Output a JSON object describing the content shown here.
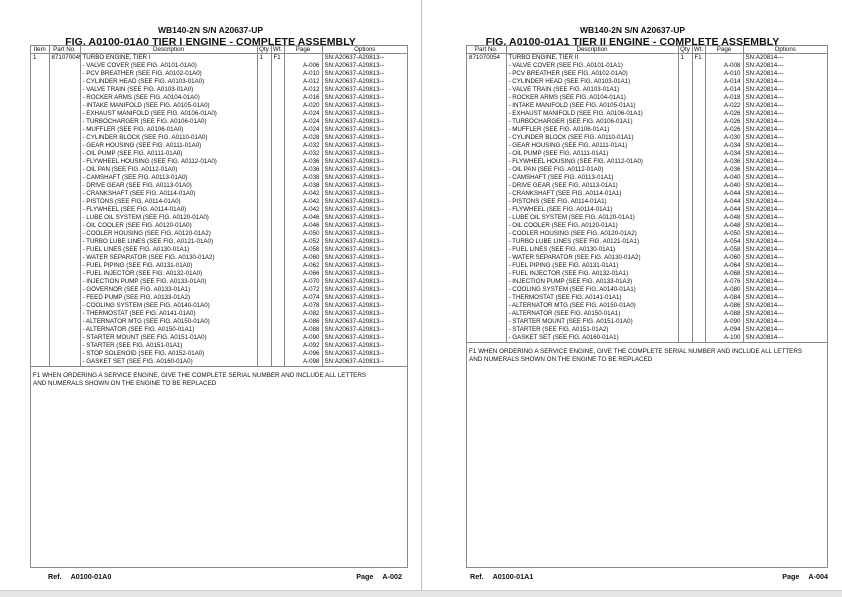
{
  "pages": [
    {
      "header": "WB140-2N S/N A20637-UP",
      "title": "FIG. A0100-01A0 TIER I ENGINE - COMPLETE ASSEMBLY",
      "columns": [
        "Item",
        "Part No.",
        "Description",
        "Qty",
        "Wt.",
        "Page",
        "Options"
      ],
      "rows": [
        {
          "item": "1",
          "part": "871070049",
          "desc": "TURBO ENGINE, TIER I",
          "qty": "1",
          "wt": "F1",
          "page": "",
          "options": "SN:A20637-A20813--"
        },
        {
          "desc": "- VALVE COVER (SEE FIG. A0101-01A0)",
          "page": "A-006",
          "options": "SN:A20637-A20813--"
        },
        {
          "desc": "- PCV BREATHER (SEE FIG. A0102-01A0)",
          "page": "A-010",
          "options": "SN:A20637-A20813--"
        },
        {
          "desc": "- CYLINDER HEAD (SEE FIG. A0103-01A0)",
          "page": "A-012",
          "options": "SN:A20637-A20813--"
        },
        {
          "desc": "- VALVE TRAIN (SEE FIG. A0103-01A0)",
          "page": "A-012",
          "options": "SN:A20637-A20813--"
        },
        {
          "desc": "- ROCKER ARMS (SEE FIG. A0104-01A0)",
          "page": "A-016",
          "options": "SN:A20637-A20813--"
        },
        {
          "desc": "- INTAKE MANIFOLD (SEE FIG. A0105-01A0)",
          "page": "A-020",
          "options": "SN:A20637-A20813--"
        },
        {
          "desc": "- EXHAUST MANIFOLD (SEE FIG. A0106-01A0)",
          "page": "A-024",
          "options": "SN:A20637-A20813--"
        },
        {
          "desc": "- TURBOCHARGER (SEE FIG. A0106-01A0)",
          "page": "A-024",
          "options": "SN:A20637-A20813--"
        },
        {
          "desc": "- MUFFLER (SEE FIG. A0106-01A0)",
          "page": "A-024",
          "options": "SN:A20637-A20813--"
        },
        {
          "desc": "- CYLINDER BLOCK (SEE FIG. A0110-01A0)",
          "page": "A-028",
          "options": "SN:A20637-A20813--"
        },
        {
          "desc": "- GEAR HOUSING (SEE FIG. A0111-01A0)",
          "page": "A-032",
          "options": "SN:A20637-A20813--"
        },
        {
          "desc": "- OIL PUMP (SEE FIG. A0111-01A0)",
          "page": "A-032",
          "options": "SN:A20637-A20813--"
        },
        {
          "desc": "- FLYWHEEL HOUSING (SEE FIG. A0112-01A0)",
          "page": "A-036",
          "options": "SN:A20637-A20813--"
        },
        {
          "desc": "- OIL PAN (SEE FIG. A0112-01A0)",
          "page": "A-036",
          "options": "SN:A20637-A20813--"
        },
        {
          "desc": "- CAMSHAFT (SEE FIG. A0113-01A0)",
          "page": "A-038",
          "options": "SN:A20637-A20813--"
        },
        {
          "desc": "- DRIVE GEAR (SEE FIG. A0113-01A0)",
          "page": "A-038",
          "options": "SN:A20637-A20813--"
        },
        {
          "desc": "- CRANKSHAFT (SEE FIG. A0114-01A0)",
          "page": "A-042",
          "options": "SN:A20637-A20813--"
        },
        {
          "desc": "- PISTONS (SEE FIG. A0114-01A0)",
          "page": "A-042",
          "options": "SN:A20637-A20813--"
        },
        {
          "desc": "- FLYWHEEL (SEE FIG. A0114-01A0)",
          "page": "A-042",
          "options": "SN:A20637-A20813--"
        },
        {
          "desc": "- LUBE OIL SYSTEM (SEE FIG. A0120-01A0)",
          "page": "A-046",
          "options": "SN:A20637-A20813--"
        },
        {
          "desc": "- OIL COOLER (SEE FIG. A0120-01A0)",
          "page": "A-046",
          "options": "SN:A20637-A20813--"
        },
        {
          "desc": "- COOLER HOUSING (SEE FIG. A0120-01A2)",
          "page": "A-050",
          "options": "SN:A20637-A20813--"
        },
        {
          "desc": "- TURBO LUBE LINES (SEE FIG. A0121-01A0)",
          "page": "A-052",
          "options": "SN:A20637-A20813--"
        },
        {
          "desc": "- FUEL LINES (SEE FIG. A0130-01A1)",
          "page": "A-058",
          "options": "SN:A20637-A20813--"
        },
        {
          "desc": "- WATER SEPARATOR (SEE FIG. A0130-01A2)",
          "page": "A-060",
          "options": "SN:A20637-A20813--"
        },
        {
          "desc": "- FUEL PIPING (SEE FIG. A0131-01A0)",
          "page": "A-062",
          "options": "SN:A20637-A20813--"
        },
        {
          "desc": "- FUEL INJECTOR (SEE FIG. A0132-01A0)",
          "page": "A-066",
          "options": "SN:A20637-A20813--"
        },
        {
          "desc": "- INJECTION PUMP (SEE FIG. A0133-01A0)",
          "page": "A-070",
          "options": "SN:A20637-A20813--"
        },
        {
          "desc": "- GOVERNOR (SEE FIG. A0133-01A1)",
          "page": "A-072",
          "options": "SN:A20637-A20813--"
        },
        {
          "desc": "- FEED PUMP (SEE FIG. A0133-01A2)",
          "page": "A-074",
          "options": "SN:A20637-A20813--"
        },
        {
          "desc": "- COOLING SYSTEM (SEE FIG. A0140-01A0)",
          "page": "A-078",
          "options": "SN:A20637-A20813--"
        },
        {
          "desc": "- THERMOSTAT (SEE FIG. A0141-01A0)",
          "page": "A-082",
          "options": "SN:A20637-A20813--"
        },
        {
          "desc": "- ALTERNATOR MTG (SEE FIG. A0150-01A0)",
          "page": "A-086",
          "options": "SN:A20637-A20813--"
        },
        {
          "desc": "- ALTERNATOR (SEE FIG. A0150-01A1)",
          "page": "A-088",
          "options": "SN:A20637-A20813--"
        },
        {
          "desc": "- STARTER MOUNT (SEE FIG. A0151-01A0)",
          "page": "A-090",
          "options": "SN:A20637-A20813--"
        },
        {
          "desc": "- STARTER (SEE FIG. A0151-01A1)",
          "page": "A-092",
          "options": "SN:A20637-A20813--"
        },
        {
          "desc": "- STOP SOLENOID (SEE FIG. A0152-01A0)",
          "page": "A-096",
          "options": "SN:A20637-A20813--"
        },
        {
          "desc": "- GASKET SET (SEE FIG. A0160-01A0)",
          "page": "A-098",
          "options": "SN:A20637-A20813--"
        }
      ],
      "note": "F1 WHEN ORDERING A SERVICE ENGINE, GIVE THE COMPLETE SERIAL NUMBER AND INCLUDE ALL LETTERS AND NUMERALS SHOWN ON THE ENGINE TO BE REPLACED",
      "ref_label": "Ref.",
      "ref": "A0100-01A0",
      "page_label": "Page",
      "page_number": "A-002"
    },
    {
      "header": "WB140-2N S/N A20637-UP",
      "title": "FIG. A0100-01A1 TIER II ENGINE - COMPLETE ASSEMBLY",
      "columns": [
        "Part No.",
        "Description",
        "Qty",
        "Wt.",
        "Page",
        "Options"
      ],
      "rows": [
        {
          "part": "871070054",
          "desc": "TURBO ENGINE, TIER II",
          "qty": "1",
          "wt": "F1",
          "page": "",
          "options": "SN:A20814---"
        },
        {
          "desc": "- VALVE COVER (SEE FIG. A0101-01A1)",
          "page": "A-008",
          "options": "SN:A20814---"
        },
        {
          "desc": "- PCV BREATHER (SEE FIG. A0102-01A0)",
          "page": "A-010",
          "options": "SN:A20814---"
        },
        {
          "desc": "- CYLINDER HEAD (SEE FIG. A0103-01A1)",
          "page": "A-014",
          "options": "SN:A20814---"
        },
        {
          "desc": "- VALVE TRAIN (SEE FIG. A0103-01A1)",
          "page": "A-014",
          "options": "SN:A20814---"
        },
        {
          "desc": "- ROCKER ARMS (SEE FIG. A0104-01A1)",
          "page": "A-018",
          "options": "SN:A20814---"
        },
        {
          "desc": "- INTAKE MANIFOLD (SEE FIG. A0105-01A1)",
          "page": "A-022",
          "options": "SN:A20814---"
        },
        {
          "desc": "- EXHAUST MANIFOLD (SEE FIG. A0106-01A1)",
          "page": "A-026",
          "options": "SN:A20814---"
        },
        {
          "desc": "- TURBOCHARGER (SEE FIG. A0106-01A1)",
          "page": "A-026",
          "options": "SN:A20814---"
        },
        {
          "desc": "- MUFFLER (SEE FIG. A0106-01A1)",
          "page": "A-026",
          "options": "SN:A20814---"
        },
        {
          "desc": "- CYLINDER BLOCK (SEE FIG. A0110-01A1)",
          "page": "A-030",
          "options": "SN:A20814---"
        },
        {
          "desc": "- GEAR HOUSING (SEE FIG. A0111-01A1)",
          "page": "A-034",
          "options": "SN:A20814---"
        },
        {
          "desc": "- OIL PUMP (SEE FIG. A0111-01A1)",
          "page": "A-034",
          "options": "SN:A20814---"
        },
        {
          "desc": "- FLYWHEEL HOUSING (SEE FIG. A0112-01A0)",
          "page": "A-036",
          "options": "SN:A20814---"
        },
        {
          "desc": "- OIL PAN (SEE FIG. A0112-01A0)",
          "page": "A-036",
          "options": "SN:A20814---"
        },
        {
          "desc": "- CAMSHAFT (SEE FIG. A0113-01A1)",
          "page": "A-040",
          "options": "SN:A20814---"
        },
        {
          "desc": "- DRIVE GEAR (SEE FIG. A0113-01A1)",
          "page": "A-040",
          "options": "SN:A20814---"
        },
        {
          "desc": "- CRANKSHAFT (SEE FIG. A0114-01A1)",
          "page": "A-044",
          "options": "SN:A20814---"
        },
        {
          "desc": "- PISTONS (SEE FIG. A0114-01A1)",
          "page": "A-044",
          "options": "SN:A20814---"
        },
        {
          "desc": "- FLYWHEEL (SEE FIG. A0114-01A1)",
          "page": "A-044",
          "options": "SN:A20814---"
        },
        {
          "desc": "- LUBE OIL SYSTEM (SEE FIG. A0120-01A1)",
          "page": "A-048",
          "options": "SN:A20814---"
        },
        {
          "desc": "- OIL COOLER (SEE FIG. A0120-01A1)",
          "page": "A-048",
          "options": "SN:A20814---"
        },
        {
          "desc": "- COOLER HOUSING (SEE FIG. A0120-01A2)",
          "page": "A-050",
          "options": "SN:A20814---"
        },
        {
          "desc": "- TURBO LUBE LINES (SEE FIG. A0121-01A1)",
          "page": "A-054",
          "options": "SN:A20814---"
        },
        {
          "desc": "- FUEL LINES (SEE FIG. A0130-01A1)",
          "page": "A-058",
          "options": "SN:A20814---"
        },
        {
          "desc": "- WATER SEPARATOR (SEE FIG. A0130-01A2)",
          "page": "A-060",
          "options": "SN:A20814---"
        },
        {
          "desc": "- FUEL PIPING (SEE FIG. A0131-01A1)",
          "page": "A-064",
          "options": "SN:A20814---"
        },
        {
          "desc": "- FUEL INJECTOR (SEE FIG. A0132-01A1)",
          "page": "A-068",
          "options": "SN:A20814---"
        },
        {
          "desc": "- INJECTION PUMP (SEE FIG. A0133-01A3)",
          "page": "A-076",
          "options": "SN:A20814---"
        },
        {
          "desc": "- COOLING SYSTEM (SEE FIG. A0140-01A1)",
          "page": "A-080",
          "options": "SN:A20814---"
        },
        {
          "desc": "- THERMOSTAT (SEE FIG. A0141-01A1)",
          "page": "A-084",
          "options": "SN:A20814---"
        },
        {
          "desc": "- ALTERNATOR MTG (SEE FIG. A0150-01A0)",
          "page": "A-086",
          "options": "SN:A20814---"
        },
        {
          "desc": "- ALTERNATOR (SEE FIG. A0150-01A1)",
          "page": "A-088",
          "options": "SN:A20814---"
        },
        {
          "desc": "- STARTER MOUNT (SEE FIG. A0151-01A0)",
          "page": "A-090",
          "options": "SN:A20814---"
        },
        {
          "desc": "- STARTER (SEE FIG. A0151-01A2)",
          "page": "A-094",
          "options": "SN:A20814---"
        },
        {
          "desc": "- GASKET SET (SEE FIG. A0160-01A1)",
          "page": "A-100",
          "options": "SN:A20814---"
        }
      ],
      "note": "F1 WHEN ORDERING A SERVICE ENGINE, GIVE THE COMPLETE SERIAL NUMBER AND INCLUDE ALL LETTERS AND NUMERALS SHOWN ON THE ENGINE TO BE REPLACED",
      "ref_label": "Ref.",
      "ref": "A0100-01A1",
      "page_label": "Page",
      "page_number": "A-004"
    }
  ]
}
